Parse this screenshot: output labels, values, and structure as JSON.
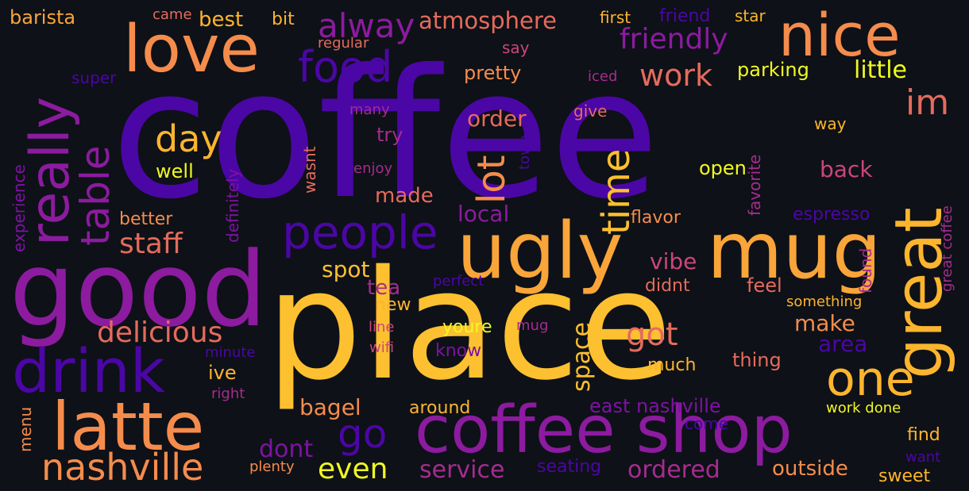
{
  "words": {
    "coffee": "coffee",
    "place": "place",
    "good": "good",
    "ugly": "ugly",
    "mug": "mug",
    "great": "great",
    "nice": "nice",
    "love": "love",
    "really": "really",
    "drink": "drink",
    "latte": "latte",
    "coffee_shop": "coffee shop",
    "nashville": "nashville",
    "one": "one",
    "people": "people",
    "food": "food",
    "table": "table",
    "time": "time",
    "lot": "lot",
    "day": "day",
    "im": "im",
    "friendly": "friendly",
    "alway": "alway",
    "atmosphere": "atmosphere",
    "work": "work",
    "staff": "staff",
    "delicious": "delicious",
    "got": "got",
    "go": "go",
    "even": "even",
    "service": "service",
    "ordered": "ordered",
    "dont": "dont",
    "bagel": "bagel",
    "order": "order",
    "back": "back",
    "space": "space",
    "little": "little",
    "parking": "parking",
    "pretty": "pretty",
    "best": "best",
    "bit": "bit",
    "barista": "barista",
    "came": "came",
    "first": "first",
    "friend": "friend",
    "star": "star",
    "regular": "regular",
    "say": "say",
    "super": "super",
    "iced": "iced",
    "many": "many",
    "give": "give",
    "way": "way",
    "try": "try",
    "experience": "experience",
    "definitely": "definitely",
    "wasnt": "wasnt",
    "enjoy": "enjoy",
    "town": "town",
    "favorite": "favorite",
    "great_coffee": "great coffee",
    "well": "well",
    "made": "made",
    "open": "open",
    "local": "local",
    "better": "better",
    "flavor": "flavor",
    "espresso": "espresso",
    "found": "found",
    "spot": "spot",
    "vibe": "vibe",
    "tea": "tea",
    "perfect": "perfect",
    "didnt": "didnt",
    "feel": "feel",
    "new": "new",
    "something": "something",
    "make": "make",
    "line": "line",
    "youre": "youre",
    "mug_small": "mug",
    "area": "area",
    "minute": "minute",
    "ive": "ive",
    "wifi": "wifi",
    "know": "know",
    "thing": "thing",
    "right": "right",
    "much": "much",
    "menu": "menu",
    "around": "around",
    "east_nashville": "east nashville",
    "come": "come",
    "work_done": "work done",
    "find": "find",
    "want": "want",
    "plenty": "plenty",
    "seating": "seating",
    "outside": "outside",
    "sweet": "sweet"
  },
  "palette": {
    "background": "#0e1117",
    "deep_indigo": "#4b06a6",
    "purple": "#7e12a3",
    "magenta": "#a52c8f",
    "pink": "#cb4678",
    "coral": "#e56b5c",
    "orange": "#f78c48",
    "amber": "#fdb52e",
    "yellow": "#f0f921"
  }
}
